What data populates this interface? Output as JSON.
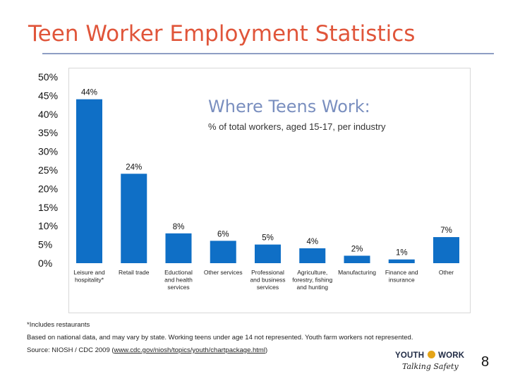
{
  "slide": {
    "title": "Teen Worker Employment Statistics",
    "page_number": "8"
  },
  "chart_data": {
    "type": "bar",
    "title": "Where Teens Work:",
    "subtitle": "% of total workers, aged 15-17, per industry",
    "categories": [
      "Leisure and hospitality*",
      "Retail trade",
      "Eductional and health services",
      "Other services",
      "Professional and business services",
      "Agriculture, forestry, fishing and hunting",
      "Manufacturing",
      "Finance and insurance",
      "Other"
    ],
    "category_lines": [
      [
        "Leisure and",
        "hospitality*"
      ],
      [
        "Retail trade"
      ],
      [
        "Eductional",
        "and health",
        "services"
      ],
      [
        "Other services"
      ],
      [
        "Professional",
        "and business",
        "services"
      ],
      [
        "Agriculture,",
        "forestry, fishing",
        "and hunting"
      ],
      [
        "Manufacturing"
      ],
      [
        "Finance and",
        "insurance"
      ],
      [
        "Other"
      ]
    ],
    "values": [
      44,
      24,
      8,
      6,
      5,
      4,
      2,
      1,
      7
    ],
    "value_labels": [
      "44%",
      "24%",
      "8%",
      "6%",
      "5%",
      "4%",
      "2%",
      "1%",
      "7%"
    ],
    "y_ticks": [
      "50%",
      "45%",
      "40%",
      "35%",
      "30%",
      "25%",
      "20%",
      "15%",
      "10%",
      "5%",
      "0%"
    ],
    "ylim": [
      0,
      50
    ],
    "bar_color": "#0f6fc6",
    "grid": false
  },
  "notes": {
    "footnote": "*Includes restaurants",
    "basis": "Based on national data, and may vary by state. Working teens under age 14 not represented. Youth farm workers not represented.",
    "source_prefix": "Source: NIOSH / CDC 2009 (",
    "source_link": "www.cdc.gov/niosh/topics/youth/chartpackage.html",
    "source_suffix": ")"
  },
  "logo": {
    "word_left": "YOUTH",
    "word_right": "WORK",
    "tagline": "Talking Safety"
  }
}
